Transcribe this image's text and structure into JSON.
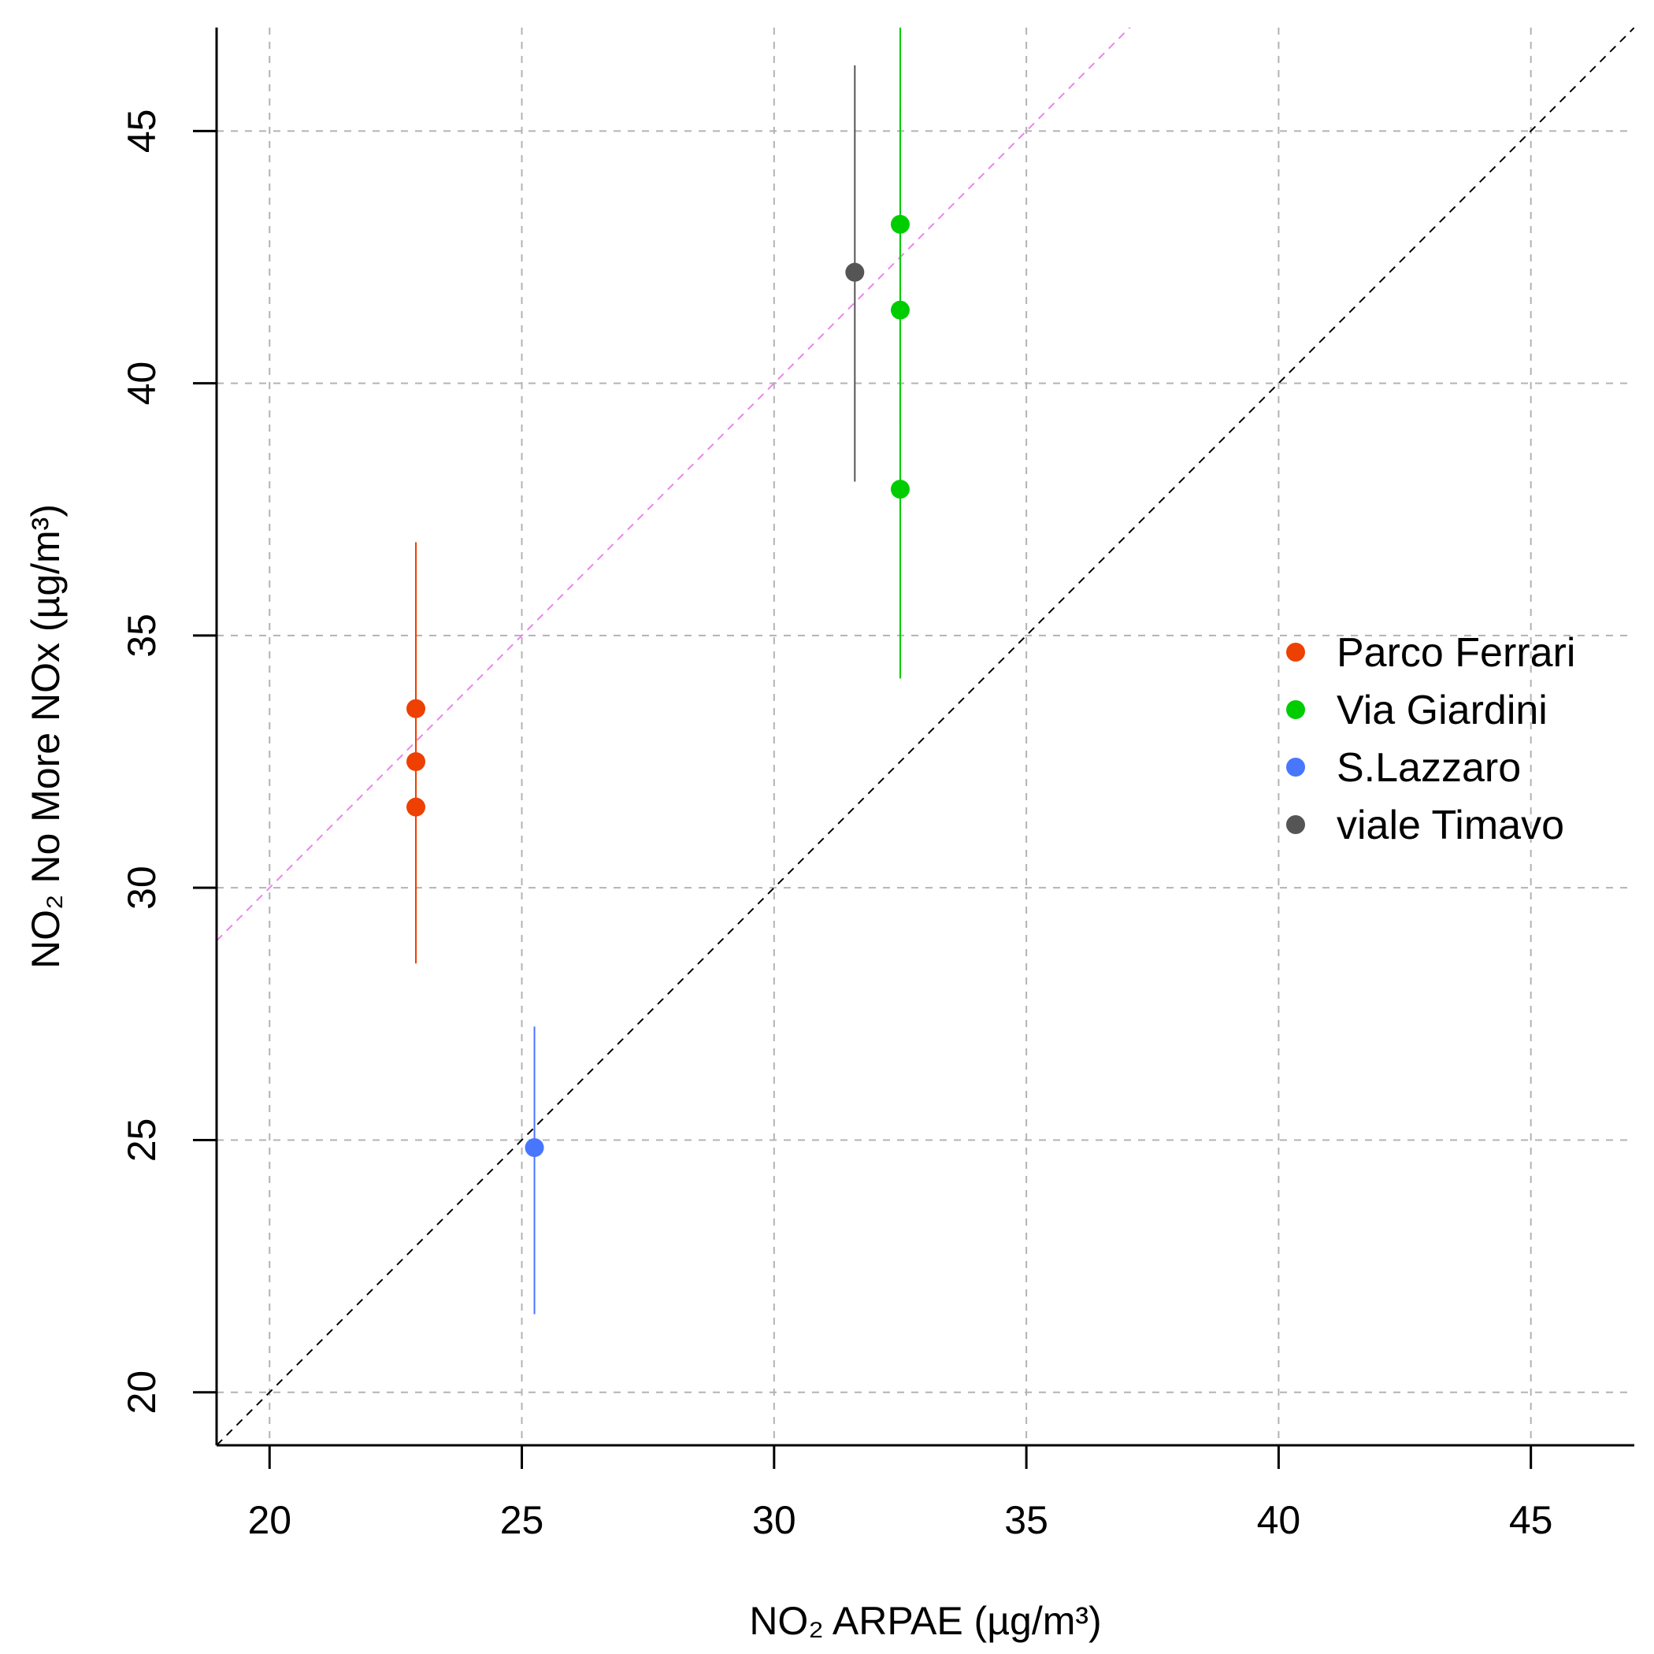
{
  "chart_data": {
    "type": "scatter",
    "title": "",
    "xlabel": "NO₂ ARPAE (µg/m³)",
    "ylabel": "NO₂ No More NOx (µg/m³)",
    "xlim": [
      18.95,
      47.05
    ],
    "ylim": [
      18.95,
      47.05
    ],
    "x_ticks": [
      20,
      25,
      30,
      35,
      40,
      45
    ],
    "y_ticks": [
      20,
      25,
      30,
      35,
      40,
      45
    ],
    "x_tick_labels": [
      "20",
      "25",
      "30",
      "35",
      "40",
      "45"
    ],
    "y_tick_labels": [
      "20",
      "25",
      "30",
      "35",
      "40",
      "45"
    ],
    "grid": true,
    "legend_position": "right",
    "reference_lines": [
      {
        "kind": "identity",
        "slope": 1,
        "intercept": 0,
        "color": "#000000",
        "dash": "dashed"
      },
      {
        "kind": "fit",
        "slope": 1,
        "intercept": 10,
        "color": "#EE82EE",
        "dash": "dashed"
      }
    ],
    "series": [
      {
        "name": "Parco Ferrari",
        "color": "#EE4000",
        "points": [
          {
            "x": 22.9,
            "y": 33.55,
            "y_low": 30.4,
            "y_high": 36.85
          },
          {
            "x": 22.9,
            "y": 32.5,
            "y_low": 29.25,
            "y_high": 35.75
          },
          {
            "x": 22.9,
            "y": 31.6,
            "y_low": 28.5,
            "y_high": 34.75
          }
        ]
      },
      {
        "name": "Via Giardini",
        "color": "#00CD00",
        "points": [
          {
            "x": 32.5,
            "y": 43.15,
            "y_low": 39.15,
            "y_high": 47.05
          },
          {
            "x": 32.5,
            "y": 41.45,
            "y_low": 37.55,
            "y_high": 45.45
          },
          {
            "x": 32.5,
            "y": 37.9,
            "y_low": 34.15,
            "y_high": 41.75
          }
        ]
      },
      {
        "name": "S.Lazzaro",
        "color": "#4876FF",
        "points": [
          {
            "x": 25.25,
            "y": 24.85,
            "y_low": 21.55,
            "y_high": 27.25
          }
        ]
      },
      {
        "name": "viale Timavo",
        "color": "#555555",
        "points": [
          {
            "x": 31.6,
            "y": 42.2,
            "y_low": 38.05,
            "y_high": 46.3
          }
        ]
      }
    ]
  }
}
